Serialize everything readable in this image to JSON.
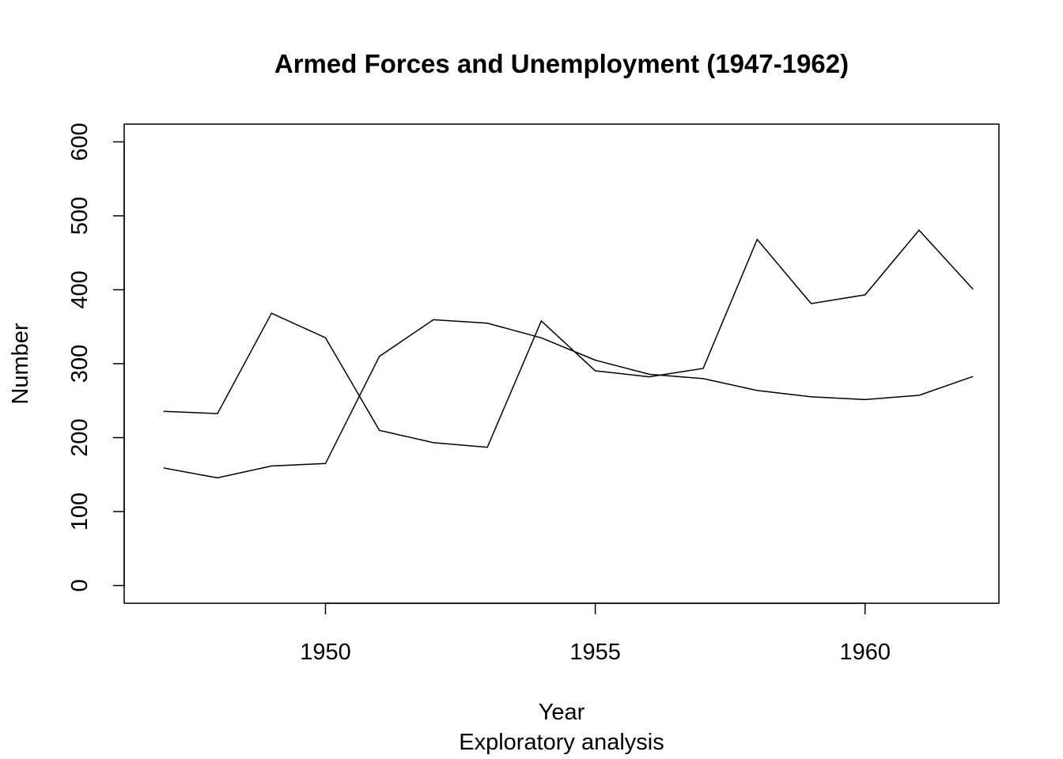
{
  "chart_data": {
    "type": "line",
    "title": "Armed Forces and Unemployment (1947-1962)",
    "xlabel": "Year",
    "subtitle": "Exploratory analysis",
    "ylabel": "Number",
    "x": [
      1947,
      1948,
      1949,
      1950,
      1951,
      1952,
      1953,
      1954,
      1955,
      1956,
      1957,
      1958,
      1959,
      1960,
      1961,
      1962
    ],
    "series": [
      {
        "values": [
          235.6,
          232.5,
          368.2,
          335.1,
          209.9,
          193.2,
          187.0,
          357.8,
          290.4,
          282.2,
          293.6,
          468.1,
          381.3,
          393.1,
          480.6,
          400.7
        ],
        "color": "#000000"
      },
      {
        "values": [
          159.0,
          145.6,
          161.6,
          165.0,
          309.9,
          359.4,
          354.7,
          335.0,
          304.8,
          285.7,
          279.8,
          263.7,
          255.2,
          251.4,
          257.2,
          282.7
        ],
        "color": "#000000"
      }
    ],
    "xlim": [
      1946.27,
      1962.48
    ],
    "ylim": [
      -24,
      624
    ],
    "xticks": [
      1950,
      1955,
      1960
    ],
    "yticks": [
      0,
      100,
      200,
      300,
      400,
      500,
      600
    ],
    "grid": false,
    "legend": "none"
  }
}
